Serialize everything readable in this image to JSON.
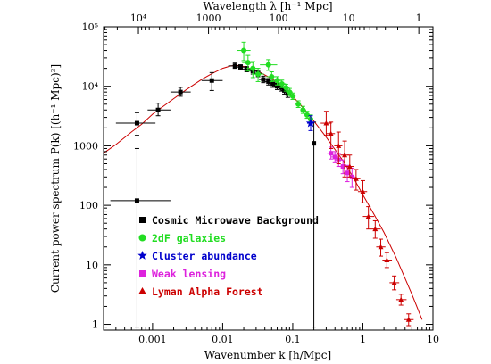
{
  "chart_data": {
    "type": "scatter",
    "xlabel": "Wavenumber k [h/Mpc]",
    "ylabel": "Current power spectrum P(k) [(h⁻¹ Mpc)³]",
    "top_axis_label": "Wavelength λ [h⁻¹ Mpc]",
    "xscale": "log",
    "yscale": "log",
    "xlim": [
      0.0002,
      10
    ],
    "ylim": [
      0.8,
      100000
    ],
    "x_ticks": [
      {
        "value": 0.001,
        "label": "0.001"
      },
      {
        "value": 0.01,
        "label": "0.01"
      },
      {
        "value": 0.1,
        "label": "0.1"
      },
      {
        "value": 1,
        "label": "1"
      },
      {
        "value": 10,
        "label": "10"
      }
    ],
    "y_ticks": [
      {
        "value": 1,
        "label": "1"
      },
      {
        "value": 10,
        "label": "10"
      },
      {
        "value": 100,
        "label": "100"
      },
      {
        "value": 1000,
        "label": "1000"
      },
      {
        "value": 10000,
        "label": "10⁴"
      },
      {
        "value": 100000,
        "label": "10⁵"
      }
    ],
    "top_ticks": [
      {
        "wavelength": 10000,
        "label": "10⁴"
      },
      {
        "wavelength": 1000,
        "label": "1000"
      },
      {
        "wavelength": 100,
        "label": "100"
      },
      {
        "wavelength": 10,
        "label": "10"
      },
      {
        "wavelength": 1,
        "label": "1"
      }
    ],
    "model_curve": {
      "color": "#cc0000",
      "points": [
        [
          0.0002,
          750
        ],
        [
          0.0003,
          1050
        ],
        [
          0.0005,
          1700
        ],
        [
          0.0007,
          2300
        ],
        [
          0.001,
          3400
        ],
        [
          0.002,
          6200
        ],
        [
          0.003,
          8700
        ],
        [
          0.005,
          13000
        ],
        [
          0.007,
          16300
        ],
        [
          0.01,
          20000
        ],
        [
          0.013,
          22000
        ],
        [
          0.016,
          22500
        ],
        [
          0.02,
          21500
        ],
        [
          0.03,
          18500
        ],
        [
          0.05,
          13500
        ],
        [
          0.07,
          10000
        ],
        [
          0.1,
          6800
        ],
        [
          0.15,
          4000
        ],
        [
          0.2,
          2600
        ],
        [
          0.3,
          1400
        ],
        [
          0.5,
          600
        ],
        [
          0.7,
          320
        ],
        [
          1,
          150
        ],
        [
          1.5,
          65
        ],
        [
          2,
          35
        ],
        [
          3,
          13
        ],
        [
          5,
          3.2
        ],
        [
          7,
          1.2
        ]
      ]
    },
    "series": [
      {
        "name": "Cosmic Microwave Background",
        "marker": "square",
        "color": "#000000",
        "points": [
          {
            "x": 0.0006,
            "y": 120,
            "xerr": [
              0.00025,
              0.0018
            ],
            "yerr": [
              0.9,
              900
            ]
          },
          {
            "x": 0.0006,
            "y": 2400,
            "xerr": [
              0.0003,
              0.0011
            ],
            "yerr": [
              1500,
              3600
            ]
          },
          {
            "x": 0.0012,
            "y": 4000,
            "xerr": [
              0.00085,
              0.0018
            ],
            "yerr": [
              3200,
              5200
            ]
          },
          {
            "x": 0.0025,
            "y": 8000,
            "xerr": [
              0.0018,
              0.0035
            ],
            "yerr": [
              6800,
              9600
            ]
          },
          {
            "x": 0.007,
            "y": 12500,
            "xerr": [
              0.005,
              0.01
            ],
            "yerr": [
              8500,
              17000
            ]
          },
          {
            "x": 0.015,
            "y": 22000,
            "xerr": [
              0.012,
              0.019
            ],
            "yerr": [
              20000,
              24500
            ]
          },
          {
            "x": 0.018,
            "y": 21000,
            "xerr": [
              0.015,
              0.022
            ],
            "yerr": [
              19000,
              23000
            ]
          },
          {
            "x": 0.022,
            "y": 19500,
            "xerr": [
              0.018,
              0.026
            ],
            "yerr": [
              17500,
              21500
            ]
          },
          {
            "x": 0.027,
            "y": 18000,
            "xerr": [
              0.023,
              0.032
            ],
            "yerr": [
              16000,
              20000
            ]
          },
          {
            "x": 0.032,
            "y": 16500,
            "xerr": [
              0.028,
              0.037
            ],
            "yerr": [
              14500,
              18500
            ]
          },
          {
            "x": 0.038,
            "y": 13000,
            "xerr": [
              0.033,
              0.044
            ],
            "yerr": [
              11500,
              14800
            ]
          },
          {
            "x": 0.045,
            "y": 12000,
            "xerr": [
              0.039,
              0.052
            ],
            "yerr": [
              10500,
              13500
            ]
          },
          {
            "x": 0.052,
            "y": 11000,
            "xerr": [
              0.046,
              0.06
            ],
            "yerr": [
              9600,
              12500
            ]
          },
          {
            "x": 0.06,
            "y": 10000,
            "xerr": [
              0.053,
              0.068
            ],
            "yerr": [
              8800,
              11300
            ]
          },
          {
            "x": 0.068,
            "y": 9500,
            "xerr": [
              0.06,
              0.076
            ],
            "yerr": [
              8300,
              10800
            ]
          },
          {
            "x": 0.076,
            "y": 8500,
            "xerr": [
              0.068,
              0.085
            ],
            "yerr": [
              7400,
              9700
            ]
          },
          {
            "x": 0.085,
            "y": 7500,
            "xerr": [
              0.076,
              0.095
            ],
            "yerr": [
              6500,
              8600
            ]
          },
          {
            "x": 0.2,
            "y": 1100,
            "xerr": [
              0.19,
              0.21
            ],
            "yerr": [
              0.9,
              2500
            ]
          }
        ]
      },
      {
        "name": "2dF galaxies",
        "marker": "circle",
        "color": "#22dd22",
        "points": [
          {
            "x": 0.02,
            "y": 40000,
            "xerr": [
              0.016,
              0.025
            ],
            "yerr": [
              27000,
              55000
            ]
          },
          {
            "x": 0.023,
            "y": 25000,
            "xerr": [
              0.019,
              0.028
            ],
            "yerr": [
              18000,
              33000
            ]
          },
          {
            "x": 0.027,
            "y": 20000,
            "xerr": [
              0.022,
              0.033
            ],
            "yerr": [
              14000,
              26000
            ]
          },
          {
            "x": 0.032,
            "y": 16000,
            "xerr": [
              0.026,
              0.039
            ],
            "yerr": [
              12000,
              20000
            ]
          },
          {
            "x": 0.045,
            "y": 23000,
            "xerr": [
              0.034,
              0.06
            ],
            "yerr": [
              18500,
              28000
            ]
          },
          {
            "x": 0.05,
            "y": 14500,
            "xerr": [
              0.042,
              0.06
            ],
            "yerr": [
              12000,
              17500
            ]
          },
          {
            "x": 0.06,
            "y": 12500,
            "xerr": [
              0.05,
              0.07
            ],
            "yerr": [
              10500,
              14500
            ]
          },
          {
            "x": 0.07,
            "y": 11000,
            "xerr": [
              0.06,
              0.08
            ],
            "yerr": [
              9500,
              12700
            ]
          },
          {
            "x": 0.08,
            "y": 9500,
            "xerr": [
              0.07,
              0.09
            ],
            "yerr": [
              8300,
              10800
            ]
          },
          {
            "x": 0.09,
            "y": 8000,
            "xerr": [
              0.08,
              0.1
            ],
            "yerr": [
              7000,
              9200
            ]
          },
          {
            "x": 0.1,
            "y": 6800,
            "xerr": [
              0.09,
              0.11
            ],
            "yerr": [
              6000,
              7700
            ]
          },
          {
            "x": 0.12,
            "y": 5000,
            "xerr": [
              0.11,
              0.13
            ],
            "yerr": [
              4400,
              5700
            ]
          },
          {
            "x": 0.14,
            "y": 4000,
            "xerr": [
              0.13,
              0.155
            ],
            "yerr": [
              3500,
              4600
            ]
          },
          {
            "x": 0.16,
            "y": 3300,
            "xerr": [
              0.15,
              0.175
            ],
            "yerr": [
              2900,
              3800
            ]
          },
          {
            "x": 0.18,
            "y": 2800,
            "xerr": [
              0.17,
              0.195
            ],
            "yerr": [
              2400,
              3300
            ]
          }
        ]
      },
      {
        "name": "Cluster abundance",
        "marker": "star",
        "color": "#0000cc",
        "points": [
          {
            "x": 0.18,
            "y": 2400,
            "xerr": [
              0.16,
              0.2
            ],
            "yerr": [
              1800,
              3200
            ]
          }
        ]
      },
      {
        "name": "Weak lensing",
        "marker": "square",
        "color": "#dd22dd",
        "points": [
          {
            "x": 0.35,
            "y": 750,
            "xerr": [
              0.31,
              0.4
            ],
            "yerr": [
              600,
              950
            ]
          },
          {
            "x": 0.4,
            "y": 650,
            "xerr": [
              0.35,
              0.45
            ],
            "yerr": [
              520,
              800
            ]
          },
          {
            "x": 0.45,
            "y": 580,
            "xerr": [
              0.4,
              0.5
            ],
            "yerr": [
              450,
              720
            ]
          },
          {
            "x": 0.52,
            "y": 450,
            "xerr": [
              0.46,
              0.58
            ],
            "yerr": [
              340,
              580
            ]
          },
          {
            "x": 0.6,
            "y": 350,
            "xerr": [
              0.53,
              0.67
            ],
            "yerr": [
              250,
              470
            ]
          },
          {
            "x": 0.7,
            "y": 300,
            "xerr": [
              0.62,
              0.78
            ],
            "yerr": [
              200,
              420
            ]
          }
        ]
      },
      {
        "name": "Lyman Alpha Forest",
        "marker": "triangle",
        "color": "#cc0000",
        "points": [
          {
            "x": 0.3,
            "y": 2400,
            "xerr": [
              0.25,
              0.36
            ],
            "yerr": [
              1500,
              3800
            ]
          },
          {
            "x": 0.35,
            "y": 1600,
            "xerr": [
              0.3,
              0.4
            ],
            "yerr": [
              900,
              2500
            ]
          },
          {
            "x": 0.45,
            "y": 1000,
            "xerr": [
              0.39,
              0.51
            ],
            "yerr": [
              500,
              1700
            ]
          },
          {
            "x": 0.55,
            "y": 700,
            "xerr": [
              0.48,
              0.63
            ],
            "yerr": [
              300,
              1200
            ]
          },
          {
            "x": 0.65,
            "y": 450,
            "xerr": [
              0.55,
              0.75
            ],
            "yerr": [
              300,
              700
            ]
          },
          {
            "x": 0.8,
            "y": 280,
            "xerr": [
              0.7,
              0.92
            ],
            "yerr": [
              180,
              400
            ]
          },
          {
            "x": 1.0,
            "y": 170,
            "xerr": [
              0.85,
              1.15
            ],
            "yerr": [
              110,
              260
            ]
          },
          {
            "x": 1.2,
            "y": 65,
            "xerr": [
              1.0,
              1.45
            ],
            "yerr": [
              40,
              95
            ]
          },
          {
            "x": 1.5,
            "y": 40,
            "xerr": [
              1.25,
              1.8
            ],
            "yerr": [
              28,
              55
            ]
          },
          {
            "x": 1.8,
            "y": 20,
            "xerr": [
              1.55,
              2.1
            ],
            "yerr": [
              14,
              27
            ]
          },
          {
            "x": 2.2,
            "y": 12,
            "xerr": [
              1.9,
              2.6
            ],
            "yerr": [
              9,
              16
            ]
          },
          {
            "x": 2.8,
            "y": 5,
            "xerr": [
              2.4,
              3.3
            ],
            "yerr": [
              3.8,
              6.5
            ]
          },
          {
            "x": 3.5,
            "y": 2.6,
            "xerr": [
              3,
              4.2
            ],
            "yerr": [
              2.1,
              3.2
            ]
          },
          {
            "x": 4.5,
            "y": 1.2,
            "xerr": [
              3.9,
              5.3
            ],
            "yerr": [
              0.95,
              1.5
            ]
          }
        ]
      }
    ],
    "legend_position": "lower-left"
  }
}
